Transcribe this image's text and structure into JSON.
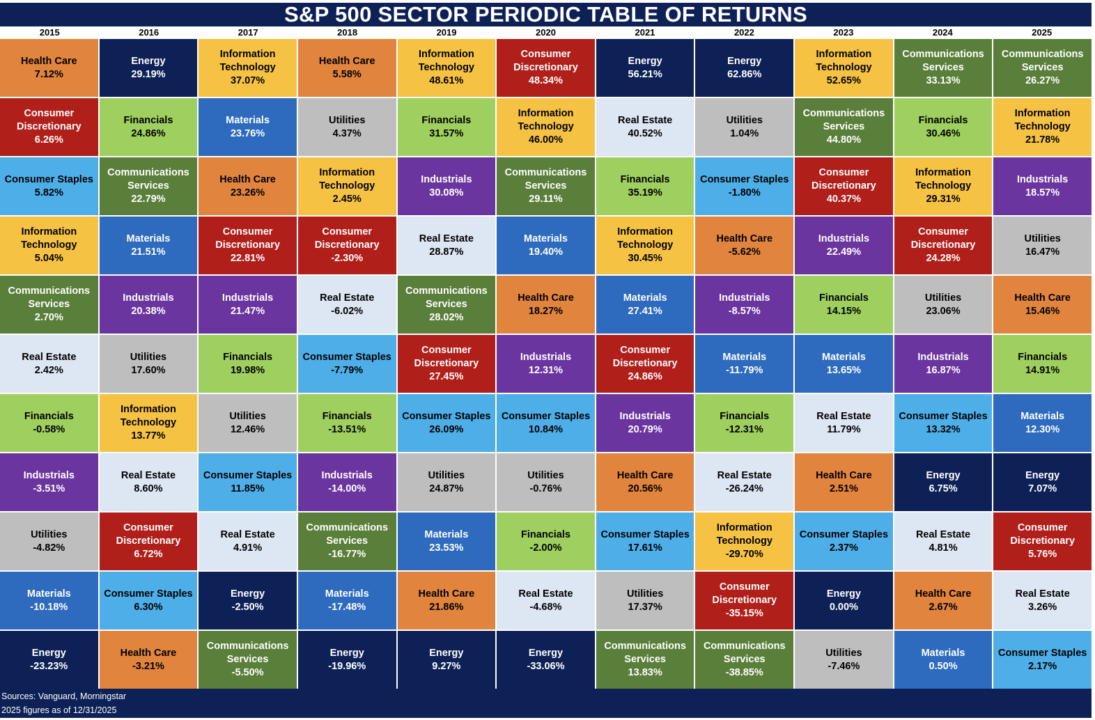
{
  "title": "S&P 500 SECTOR PERIODIC TABLE OF RETURNS",
  "footer": {
    "sources": "Sources: Vanguard, Morningstar",
    "note": "2025 figures as of 12/31/2025"
  },
  "colors": {
    "Health Care": {
      "bg": "#e0843e",
      "fg": "#000000"
    },
    "Energy": {
      "bg": "#0d2157",
      "fg": "#ffffff"
    },
    "Information Technology": {
      "bg": "#f5c243",
      "fg": "#000000"
    },
    "Consumer Discretionary": {
      "bg": "#b11f1b",
      "fg": "#ffffff"
    },
    "Communications Services": {
      "bg": "#5a7f3b",
      "fg": "#ffffff"
    },
    "Financials": {
      "bg": "#9fcf5e",
      "fg": "#000000"
    },
    "Materials": {
      "bg": "#2e6bbf",
      "fg": "#ffffff"
    },
    "Utilities": {
      "bg": "#bebebe",
      "fg": "#000000"
    },
    "Real Estate": {
      "bg": "#dde6f3",
      "fg": "#000000"
    },
    "Consumer Staples": {
      "bg": "#4eaee8",
      "fg": "#000000"
    },
    "Industrials": {
      "bg": "#6b35a0",
      "fg": "#ffffff"
    }
  },
  "chart_data": {
    "type": "table",
    "title": "S&P 500 SECTOR PERIODIC TABLE OF RETURNS",
    "columns": [
      {
        "year": "2015",
        "cells": [
          {
            "sector": "Health Care",
            "value": "7.12%"
          },
          {
            "sector": "Consumer Discretionary",
            "value": "6.26%"
          },
          {
            "sector": "Consumer Staples",
            "value": "5.82%"
          },
          {
            "sector": "Information Technology",
            "value": "5.04%"
          },
          {
            "sector": "Communications Services",
            "value": "2.70%"
          },
          {
            "sector": "Real Estate",
            "value": "2.42%"
          },
          {
            "sector": "Financials",
            "value": "-0.58%"
          },
          {
            "sector": "Industrials",
            "value": "-3.51%"
          },
          {
            "sector": "Utilities",
            "value": "-4.82%"
          },
          {
            "sector": "Materials",
            "value": "-10.18%"
          },
          {
            "sector": "Energy",
            "value": "-23.23%"
          }
        ]
      },
      {
        "year": "2016",
        "cells": [
          {
            "sector": "Energy",
            "value": "29.19%"
          },
          {
            "sector": "Financials",
            "value": "24.86%"
          },
          {
            "sector": "Communications Services",
            "value": "22.79%"
          },
          {
            "sector": "Materials",
            "value": "21.51%"
          },
          {
            "sector": "Industrials",
            "value": "20.38%"
          },
          {
            "sector": "Utilities",
            "value": "17.60%"
          },
          {
            "sector": "Information Technology",
            "value": "13.77%"
          },
          {
            "sector": "Real Estate",
            "value": "8.60%"
          },
          {
            "sector": "Consumer Discretionary",
            "value": "6.72%"
          },
          {
            "sector": "Consumer Staples",
            "value": "6.30%"
          },
          {
            "sector": "Health Care",
            "value": "-3.21%"
          }
        ]
      },
      {
        "year": "2017",
        "cells": [
          {
            "sector": "Information Technology",
            "value": "37.07%"
          },
          {
            "sector": "Materials",
            "value": "23.76%"
          },
          {
            "sector": "Health Care",
            "value": "23.26%"
          },
          {
            "sector": "Consumer Discretionary",
            "value": "22.81%"
          },
          {
            "sector": "Industrials",
            "value": "21.47%"
          },
          {
            "sector": "Financials",
            "value": "19.98%"
          },
          {
            "sector": "Utilities",
            "value": "12.46%"
          },
          {
            "sector": "Consumer Staples",
            "value": "11.85%"
          },
          {
            "sector": "Real Estate",
            "value": "4.91%"
          },
          {
            "sector": "Energy",
            "value": "-2.50%"
          },
          {
            "sector": "Communications Services",
            "value": "-5.50%"
          }
        ]
      },
      {
        "year": "2018",
        "cells": [
          {
            "sector": "Health Care",
            "value": "5.58%"
          },
          {
            "sector": "Utilities",
            "value": "4.37%"
          },
          {
            "sector": "Information Technology",
            "value": "2.45%"
          },
          {
            "sector": "Consumer Discretionary",
            "value": "-2.30%"
          },
          {
            "sector": "Real Estate",
            "value": "-6.02%"
          },
          {
            "sector": "Consumer Staples",
            "value": "-7.79%"
          },
          {
            "sector": "Financials",
            "value": "-13.51%"
          },
          {
            "sector": "Industrials",
            "value": "-14.00%"
          },
          {
            "sector": "Communications Services",
            "value": "-16.77%"
          },
          {
            "sector": "Materials",
            "value": "-17.48%"
          },
          {
            "sector": "Energy",
            "value": "-19.96%"
          }
        ]
      },
      {
        "year": "2019",
        "cells": [
          {
            "sector": "Information Technology",
            "value": "48.61%"
          },
          {
            "sector": "Financials",
            "value": "31.57%"
          },
          {
            "sector": "Industrials",
            "value": "30.08%"
          },
          {
            "sector": "Real Estate",
            "value": "28.87%"
          },
          {
            "sector": "Communications Services",
            "value": "28.02%"
          },
          {
            "sector": "Consumer Discretionary",
            "value": "27.45%"
          },
          {
            "sector": "Consumer Staples",
            "value": "26.09%"
          },
          {
            "sector": "Utilities",
            "value": "24.87%"
          },
          {
            "sector": "Materials",
            "value": "23.53%"
          },
          {
            "sector": "Health Care",
            "value": "21.86%"
          },
          {
            "sector": "Energy",
            "value": "9.27%"
          }
        ]
      },
      {
        "year": "2020",
        "cells": [
          {
            "sector": "Consumer Discretionary",
            "value": "48.34%"
          },
          {
            "sector": "Information Technology",
            "value": "46.00%"
          },
          {
            "sector": "Communications Services",
            "value": "29.11%"
          },
          {
            "sector": "Materials",
            "value": "19.40%"
          },
          {
            "sector": "Health Care",
            "value": "18.27%"
          },
          {
            "sector": "Industrials",
            "value": "12.31%"
          },
          {
            "sector": "Consumer Staples",
            "value": "10.84%"
          },
          {
            "sector": "Utilities",
            "value": "-0.76%"
          },
          {
            "sector": "Financials",
            "value": "-2.00%"
          },
          {
            "sector": "Real Estate",
            "value": "-4.68%"
          },
          {
            "sector": "Energy",
            "value": "-33.06%"
          }
        ]
      },
      {
        "year": "2021",
        "cells": [
          {
            "sector": "Energy",
            "value": "56.21%"
          },
          {
            "sector": "Real Estate",
            "value": "40.52%"
          },
          {
            "sector": "Financials",
            "value": "35.19%"
          },
          {
            "sector": "Information Technology",
            "value": "30.45%"
          },
          {
            "sector": "Materials",
            "value": "27.41%"
          },
          {
            "sector": "Consumer Discretionary",
            "value": "24.86%"
          },
          {
            "sector": "Industrials",
            "value": "20.79%"
          },
          {
            "sector": "Health Care",
            "value": "20.56%"
          },
          {
            "sector": "Consumer Staples",
            "value": "17.61%"
          },
          {
            "sector": "Utilities",
            "value": "17.37%"
          },
          {
            "sector": "Communications Services",
            "value": "13.83%"
          }
        ]
      },
      {
        "year": "2022",
        "cells": [
          {
            "sector": "Energy",
            "value": "62.86%"
          },
          {
            "sector": "Utilities",
            "value": "1.04%"
          },
          {
            "sector": "Consumer Staples",
            "value": "-1.80%"
          },
          {
            "sector": "Health Care",
            "value": "-5.62%"
          },
          {
            "sector": "Industrials",
            "value": "-8.57%"
          },
          {
            "sector": "Materials",
            "value": "-11.79%"
          },
          {
            "sector": "Financials",
            "value": "-12.31%"
          },
          {
            "sector": "Real Estate",
            "value": "-26.24%"
          },
          {
            "sector": "Information Technology",
            "value": "-29.70%"
          },
          {
            "sector": "Consumer Discretionary",
            "value": "-35.15%"
          },
          {
            "sector": "Communications Services",
            "value": "-38.85%"
          }
        ]
      },
      {
        "year": "2023",
        "cells": [
          {
            "sector": "Information Technology",
            "value": "52.65%"
          },
          {
            "sector": "Communications Services",
            "value": "44.80%"
          },
          {
            "sector": "Consumer Discretionary",
            "value": "40.37%"
          },
          {
            "sector": "Industrials",
            "value": "22.49%"
          },
          {
            "sector": "Financials",
            "value": "14.15%"
          },
          {
            "sector": "Materials",
            "value": "13.65%"
          },
          {
            "sector": "Real Estate",
            "value": "11.79%"
          },
          {
            "sector": "Health Care",
            "value": "2.51%"
          },
          {
            "sector": "Consumer Staples",
            "value": "2.37%"
          },
          {
            "sector": "Energy",
            "value": "0.00%"
          },
          {
            "sector": "Utilities",
            "value": "-7.46%"
          }
        ]
      },
      {
        "year": "2024",
        "cells": [
          {
            "sector": "Communications Services",
            "value": "33.13%"
          },
          {
            "sector": "Financials",
            "value": "30.46%"
          },
          {
            "sector": "Information Technology",
            "value": "29.31%"
          },
          {
            "sector": "Consumer Discretionary",
            "value": "24.28%"
          },
          {
            "sector": "Utilities",
            "value": "23.06%"
          },
          {
            "sector": "Industrials",
            "value": "16.87%"
          },
          {
            "sector": "Consumer Staples",
            "value": "13.32%"
          },
          {
            "sector": "Energy",
            "value": "6.75%"
          },
          {
            "sector": "Real Estate",
            "value": "4.81%"
          },
          {
            "sector": "Health Care",
            "value": "2.67%"
          },
          {
            "sector": "Materials",
            "value": "0.50%"
          }
        ]
      },
      {
        "year": "2025",
        "cells": [
          {
            "sector": "Communications Services",
            "value": "26.27%"
          },
          {
            "sector": "Information Technology",
            "value": "21.78%"
          },
          {
            "sector": "Industrials",
            "value": "18.57%"
          },
          {
            "sector": "Utilities",
            "value": "16.47%"
          },
          {
            "sector": "Health Care",
            "value": "15.46%"
          },
          {
            "sector": "Financials",
            "value": "14.91%"
          },
          {
            "sector": "Materials",
            "value": "12.30%"
          },
          {
            "sector": "Energy",
            "value": "7.07%"
          },
          {
            "sector": "Consumer Discretionary",
            "value": "5.76%"
          },
          {
            "sector": "Real Estate",
            "value": "3.26%"
          },
          {
            "sector": "Consumer Staples",
            "value": "2.17%"
          }
        ]
      }
    ]
  }
}
